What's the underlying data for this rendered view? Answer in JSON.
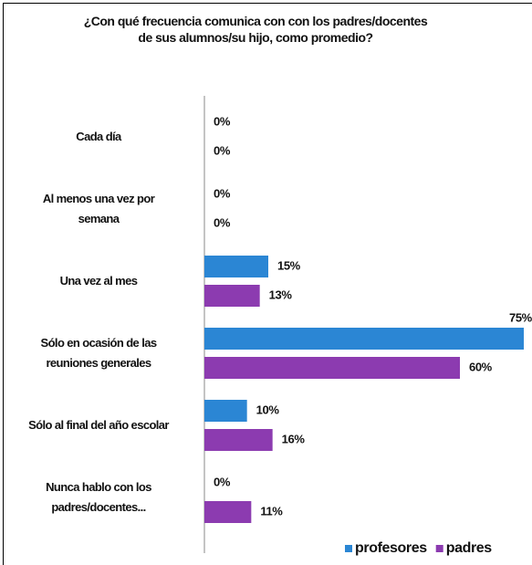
{
  "chart_data": {
    "type": "barh",
    "title": "¿Con qué frecuencia comunica con con los padres/docentes\nde sus alumnos/su hijo, como promedio?",
    "categories": [
      "Cada día",
      "Al menos una vez por\nsemana",
      "Una vez al mes",
      "Sólo en ocasión de las\nreuniones generales",
      "Sólo al final del año escolar",
      "Nunca hablo con los\npadres/docentes..."
    ],
    "series": [
      {
        "name": "profesores",
        "color": "#2b86d4",
        "values": [
          0,
          0,
          15,
          75,
          10,
          0
        ],
        "value_labels": [
          "0%",
          "0%",
          "15%",
          "75%",
          "10%",
          "0%"
        ]
      },
      {
        "name": "padres",
        "color": "#8c3bb0",
        "values": [
          0,
          0,
          13,
          60,
          16,
          11
        ],
        "value_labels": [
          "0%",
          "0%",
          "13%",
          "60%",
          "16%",
          "11%"
        ]
      }
    ],
    "xlim": [
      0,
      75
    ],
    "legend": "bottom-right"
  }
}
